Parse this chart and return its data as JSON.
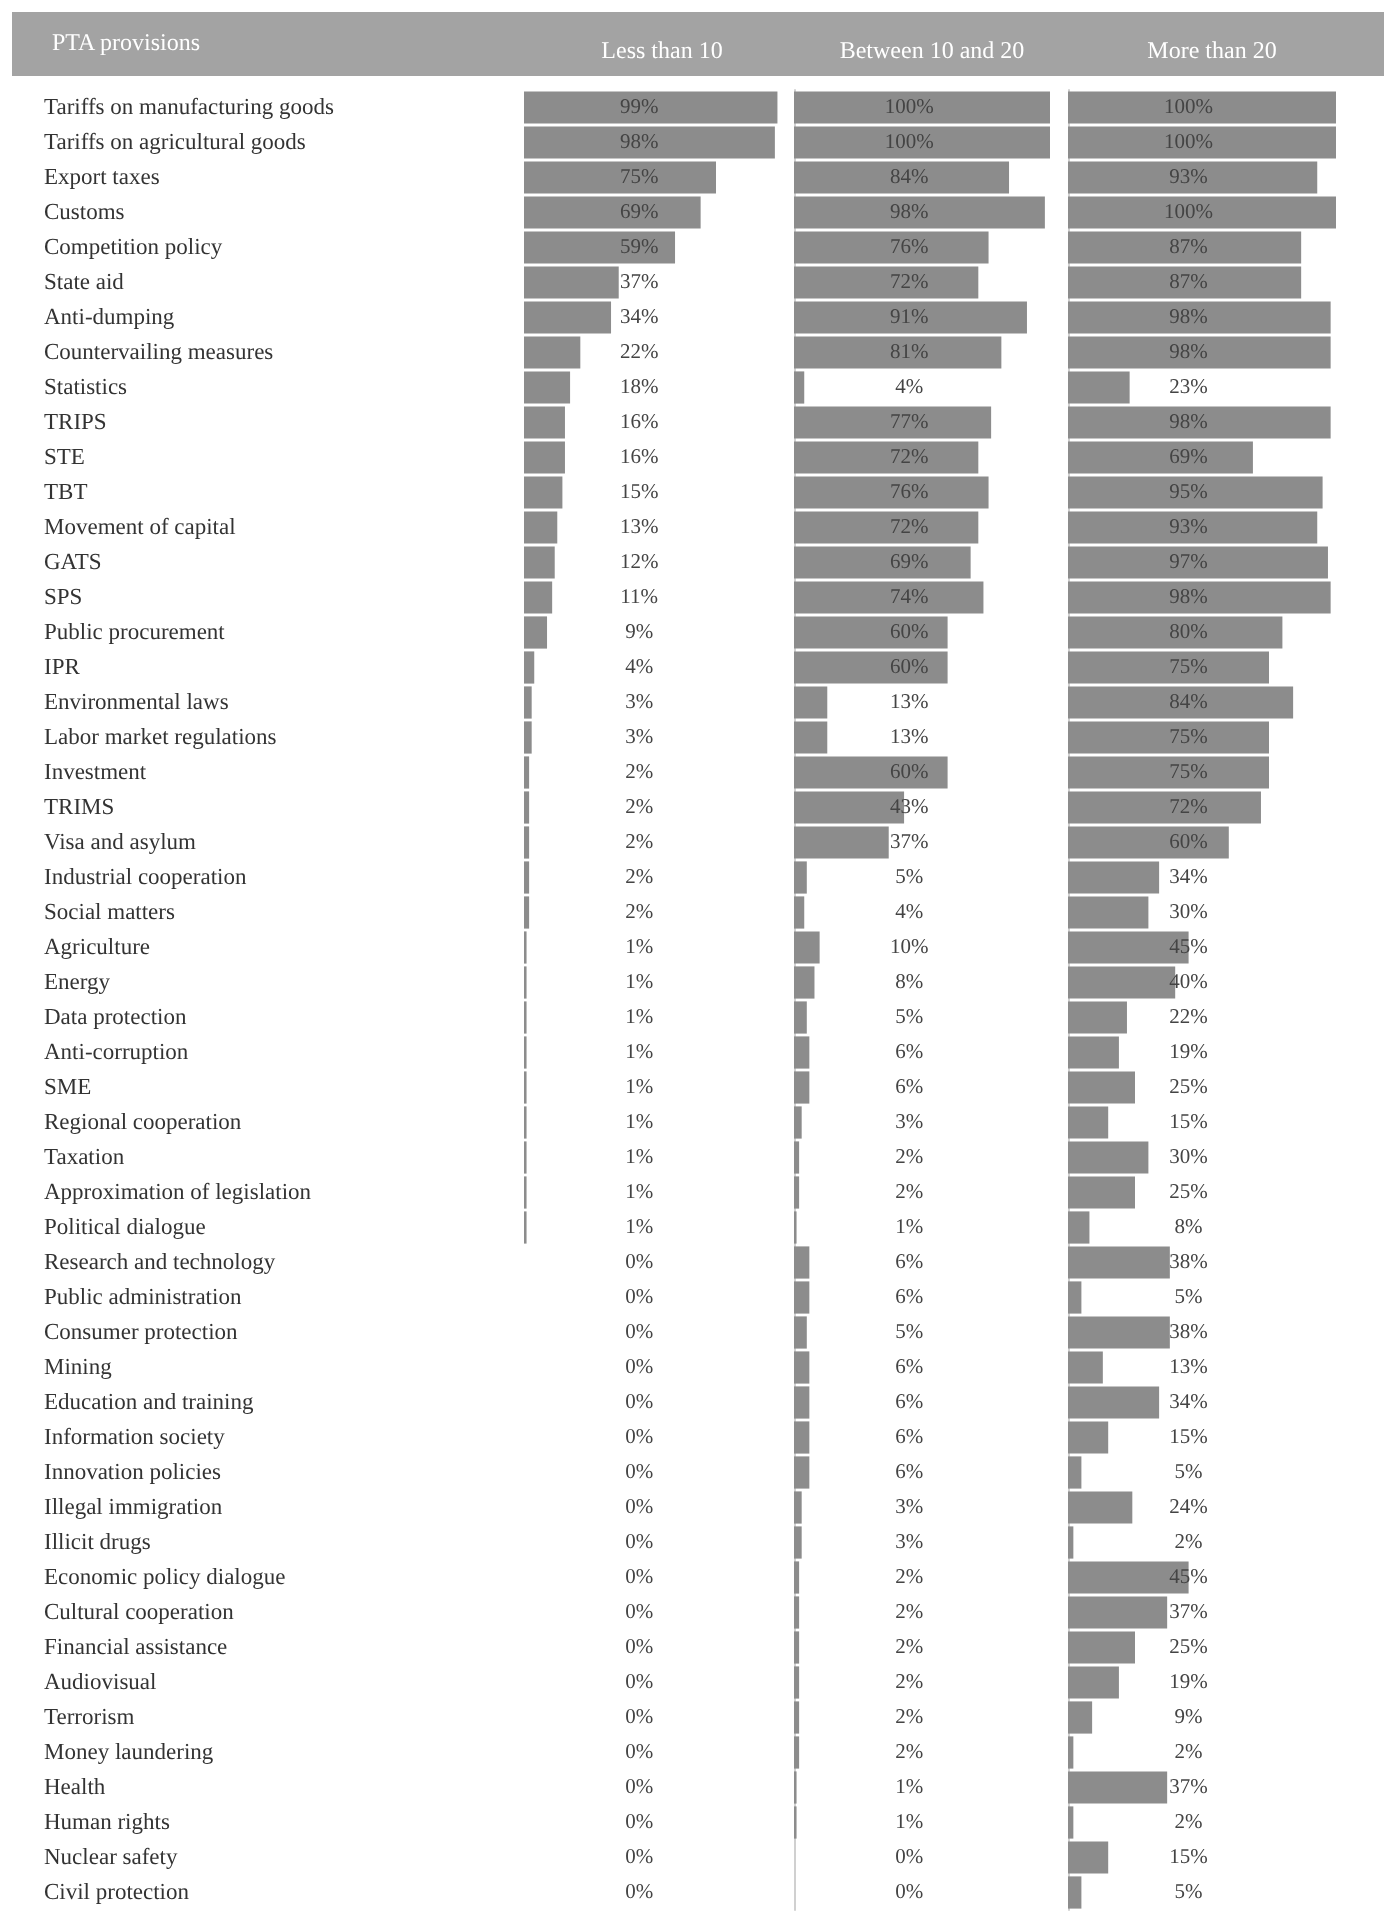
{
  "chart_data": [
    {
      "type": "bar",
      "orientation": "horizontal",
      "title": "Less than 10",
      "ylabel": "PTA provisions",
      "color": "#8c8c8c",
      "tick_labels": "y",
      "categories": [
        "Tariffs on manufacturing goods",
        "Tariffs on agricultural goods",
        "Export taxes",
        "Customs",
        "Competition policy",
        "State aid",
        "Anti-dumping",
        "Countervailing measures",
        "Statistics",
        "TRIPS",
        "STE",
        "TBT",
        "Movement of capital",
        "GATS",
        "SPS",
        "Public procurement",
        "IPR",
        "Environmental laws",
        "Labor market regulations",
        "Investment",
        "TRIMS",
        "Visa and asylum",
        "Industrial cooperation",
        "Social matters",
        "Agriculture",
        "Energy",
        "Data protection",
        "Anti-corruption",
        "SME",
        "Regional cooperation",
        "Taxation",
        "Approximation of legislation",
        "Political dialogue",
        "Research and technology",
        "Public administration",
        "Consumer protection",
        "Mining",
        "Education and training",
        "Information society",
        "Innovation policies",
        "Illegal immigration",
        "Illicit drugs",
        "Economic policy dialogue",
        "Cultural cooperation",
        "Financial assistance",
        "Audiovisual",
        "Terrorism",
        "Money laundering",
        "Health",
        "Human rights",
        "Nuclear safety",
        "Civil protection"
      ],
      "values": [
        99,
        98,
        75,
        69,
        59,
        37,
        34,
        22,
        18,
        16,
        16,
        15,
        13,
        12,
        11,
        9,
        4,
        3,
        3,
        2,
        2,
        2,
        2,
        2,
        1,
        1,
        1,
        1,
        1,
        1,
        1,
        1,
        1,
        0,
        0,
        0,
        0,
        0,
        0,
        0,
        0,
        0,
        0,
        0,
        0,
        0,
        0,
        0,
        0,
        0,
        0,
        0
      ],
      "value_labels": [
        "99%",
        "98%",
        "75%",
        "69%",
        "59%",
        "37%",
        "34%",
        "22%",
        "18%",
        "16%",
        "16%",
        "15%",
        "13%",
        "12%",
        "11%",
        "9%",
        "4%",
        "3%",
        "3%",
        "2%",
        "2%",
        "2%",
        "2%",
        "2%",
        "1%",
        "1%",
        "1%",
        "1%",
        "1%",
        "1%",
        "1%",
        "1%",
        "1%",
        "0%",
        "0%",
        "0%",
        "0%",
        "0%",
        "0%",
        "0%",
        "0%",
        "0%",
        "0%",
        "0%",
        "0%",
        "0%",
        "0%",
        "0%",
        "0%",
        "0%",
        "0%",
        "0%"
      ]
    },
    {
      "type": "bar",
      "orientation": "horizontal",
      "title": "Between 10 and 20",
      "color": "#8c8c8c",
      "tick_labels": false,
      "categories": [
        null,
        null,
        null,
        null,
        null,
        null,
        null,
        null,
        null,
        null,
        null,
        null,
        null,
        null,
        null,
        null,
        null,
        null,
        null,
        null,
        null,
        null,
        null,
        null,
        null,
        null,
        null,
        null,
        null,
        null,
        null,
        null,
        null,
        null,
        null,
        null,
        null,
        null,
        null,
        null,
        null,
        null,
        null,
        null,
        null,
        null,
        null,
        null,
        null,
        null,
        null,
        null
      ],
      "values": [
        100,
        100,
        84,
        98,
        76,
        72,
        91,
        81,
        4,
        77,
        72,
        76,
        72,
        69,
        74,
        60,
        60,
        13,
        13,
        60,
        43,
        37,
        5,
        4,
        10,
        8,
        5,
        6,
        6,
        3,
        2,
        2,
        1,
        6,
        6,
        5,
        6,
        6,
        6,
        6,
        3,
        3,
        2,
        2,
        2,
        2,
        2,
        2,
        1,
        1,
        0,
        0
      ],
      "value_labels": [
        "100%",
        "100%",
        "84%",
        "98%",
        "76%",
        "72%",
        "91%",
        "81%",
        "4%",
        "77%",
        "72%",
        "76%",
        "72%",
        "69%",
        "74%",
        "60%",
        "60%",
        "13%",
        "13%",
        "60%",
        "43%",
        "37%",
        "5%",
        "4%",
        "10%",
        "8%",
        "5%",
        "6%",
        "6%",
        "3%",
        "2%",
        "2%",
        "1%",
        "6%",
        "6%",
        "5%",
        "6%",
        "6%",
        "6%",
        "6%",
        "3%",
        "3%",
        "2%",
        "2%",
        "2%",
        "2%",
        "2%",
        "2%",
        "1%",
        "1%",
        "0%",
        "0%"
      ]
    },
    {
      "type": "bar",
      "orientation": "horizontal",
      "title": "More than 20",
      "color": "#8c8c8c",
      "tick_labels": false,
      "categories": [
        null,
        null,
        null,
        null,
        null,
        null,
        null,
        null,
        null,
        null,
        null,
        null,
        null,
        null,
        null,
        null,
        null,
        null,
        null,
        null,
        null,
        null,
        null,
        null,
        null,
        null,
        null,
        null,
        null,
        null,
        null,
        null,
        null,
        null,
        null,
        null,
        null,
        null,
        null,
        null,
        null,
        null,
        null,
        null,
        null,
        null,
        null,
        null,
        null,
        null,
        null,
        null
      ],
      "values": [
        100,
        100,
        93,
        100,
        87,
        87,
        98,
        98,
        23,
        98,
        69,
        95,
        93,
        97,
        98,
        80,
        75,
        84,
        75,
        75,
        72,
        60,
        34,
        30,
        45,
        40,
        22,
        19,
        25,
        15,
        30,
        25,
        8,
        38,
        5,
        38,
        13,
        34,
        15,
        5,
        24,
        2,
        45,
        37,
        25,
        19,
        9,
        2,
        37,
        2,
        15,
        5
      ],
      "value_labels": [
        "100%",
        "100%",
        "93%",
        "100%",
        "87%",
        "87%",
        "98%",
        "98%",
        "23%",
        "98%",
        "69%",
        "95%",
        "93%",
        "97%",
        "98%",
        "80%",
        "75%",
        "84%",
        "75%",
        "75%",
        "72%",
        "60%",
        "34%",
        "30%",
        "45%",
        "40%",
        "22%",
        "19%",
        "25%",
        "15%",
        "30%",
        "25%",
        "8%",
        "38%",
        "5%",
        "38%",
        "13%",
        "34%",
        "15%",
        "5%",
        "24%",
        "2%",
        "45%",
        "37%",
        "25%",
        "19%",
        "9%",
        "2%",
        "37%",
        "2%",
        "15%",
        "5%"
      ]
    }
  ]
}
